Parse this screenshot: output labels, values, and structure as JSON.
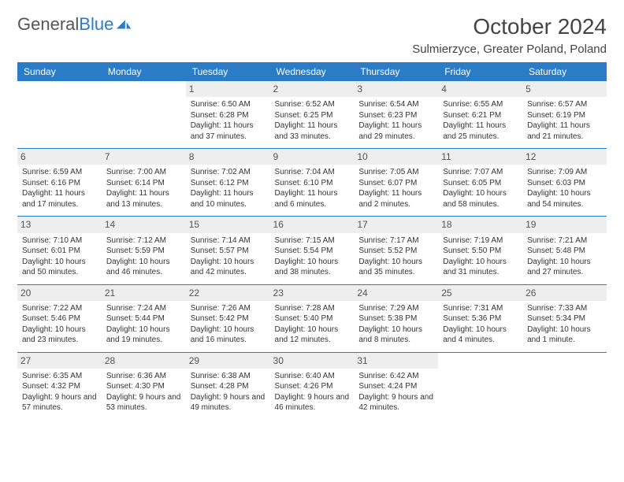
{
  "brand": {
    "part1": "General",
    "part2": "Blue"
  },
  "title": "October 2024",
  "location": "Sulmierzyce, Greater Poland, Poland",
  "colors": {
    "accent": "#2a7cc7",
    "header_bg": "#eeeeee",
    "text": "#333333",
    "background": "#ffffff"
  },
  "day_labels": [
    "Sunday",
    "Monday",
    "Tuesday",
    "Wednesday",
    "Thursday",
    "Friday",
    "Saturday"
  ],
  "weeks": [
    [
      {
        "n": "",
        "sr": "",
        "ss": "",
        "dl": ""
      },
      {
        "n": "",
        "sr": "",
        "ss": "",
        "dl": ""
      },
      {
        "n": "1",
        "sr": "Sunrise: 6:50 AM",
        "ss": "Sunset: 6:28 PM",
        "dl": "Daylight: 11 hours and 37 minutes."
      },
      {
        "n": "2",
        "sr": "Sunrise: 6:52 AM",
        "ss": "Sunset: 6:25 PM",
        "dl": "Daylight: 11 hours and 33 minutes."
      },
      {
        "n": "3",
        "sr": "Sunrise: 6:54 AM",
        "ss": "Sunset: 6:23 PM",
        "dl": "Daylight: 11 hours and 29 minutes."
      },
      {
        "n": "4",
        "sr": "Sunrise: 6:55 AM",
        "ss": "Sunset: 6:21 PM",
        "dl": "Daylight: 11 hours and 25 minutes."
      },
      {
        "n": "5",
        "sr": "Sunrise: 6:57 AM",
        "ss": "Sunset: 6:19 PM",
        "dl": "Daylight: 11 hours and 21 minutes."
      }
    ],
    [
      {
        "n": "6",
        "sr": "Sunrise: 6:59 AM",
        "ss": "Sunset: 6:16 PM",
        "dl": "Daylight: 11 hours and 17 minutes."
      },
      {
        "n": "7",
        "sr": "Sunrise: 7:00 AM",
        "ss": "Sunset: 6:14 PM",
        "dl": "Daylight: 11 hours and 13 minutes."
      },
      {
        "n": "8",
        "sr": "Sunrise: 7:02 AM",
        "ss": "Sunset: 6:12 PM",
        "dl": "Daylight: 11 hours and 10 minutes."
      },
      {
        "n": "9",
        "sr": "Sunrise: 7:04 AM",
        "ss": "Sunset: 6:10 PM",
        "dl": "Daylight: 11 hours and 6 minutes."
      },
      {
        "n": "10",
        "sr": "Sunrise: 7:05 AM",
        "ss": "Sunset: 6:07 PM",
        "dl": "Daylight: 11 hours and 2 minutes."
      },
      {
        "n": "11",
        "sr": "Sunrise: 7:07 AM",
        "ss": "Sunset: 6:05 PM",
        "dl": "Daylight: 10 hours and 58 minutes."
      },
      {
        "n": "12",
        "sr": "Sunrise: 7:09 AM",
        "ss": "Sunset: 6:03 PM",
        "dl": "Daylight: 10 hours and 54 minutes."
      }
    ],
    [
      {
        "n": "13",
        "sr": "Sunrise: 7:10 AM",
        "ss": "Sunset: 6:01 PM",
        "dl": "Daylight: 10 hours and 50 minutes."
      },
      {
        "n": "14",
        "sr": "Sunrise: 7:12 AM",
        "ss": "Sunset: 5:59 PM",
        "dl": "Daylight: 10 hours and 46 minutes."
      },
      {
        "n": "15",
        "sr": "Sunrise: 7:14 AM",
        "ss": "Sunset: 5:57 PM",
        "dl": "Daylight: 10 hours and 42 minutes."
      },
      {
        "n": "16",
        "sr": "Sunrise: 7:15 AM",
        "ss": "Sunset: 5:54 PM",
        "dl": "Daylight: 10 hours and 38 minutes."
      },
      {
        "n": "17",
        "sr": "Sunrise: 7:17 AM",
        "ss": "Sunset: 5:52 PM",
        "dl": "Daylight: 10 hours and 35 minutes."
      },
      {
        "n": "18",
        "sr": "Sunrise: 7:19 AM",
        "ss": "Sunset: 5:50 PM",
        "dl": "Daylight: 10 hours and 31 minutes."
      },
      {
        "n": "19",
        "sr": "Sunrise: 7:21 AM",
        "ss": "Sunset: 5:48 PM",
        "dl": "Daylight: 10 hours and 27 minutes."
      }
    ],
    [
      {
        "n": "20",
        "sr": "Sunrise: 7:22 AM",
        "ss": "Sunset: 5:46 PM",
        "dl": "Daylight: 10 hours and 23 minutes."
      },
      {
        "n": "21",
        "sr": "Sunrise: 7:24 AM",
        "ss": "Sunset: 5:44 PM",
        "dl": "Daylight: 10 hours and 19 minutes."
      },
      {
        "n": "22",
        "sr": "Sunrise: 7:26 AM",
        "ss": "Sunset: 5:42 PM",
        "dl": "Daylight: 10 hours and 16 minutes."
      },
      {
        "n": "23",
        "sr": "Sunrise: 7:28 AM",
        "ss": "Sunset: 5:40 PM",
        "dl": "Daylight: 10 hours and 12 minutes."
      },
      {
        "n": "24",
        "sr": "Sunrise: 7:29 AM",
        "ss": "Sunset: 5:38 PM",
        "dl": "Daylight: 10 hours and 8 minutes."
      },
      {
        "n": "25",
        "sr": "Sunrise: 7:31 AM",
        "ss": "Sunset: 5:36 PM",
        "dl": "Daylight: 10 hours and 4 minutes."
      },
      {
        "n": "26",
        "sr": "Sunrise: 7:33 AM",
        "ss": "Sunset: 5:34 PM",
        "dl": "Daylight: 10 hours and 1 minute."
      }
    ],
    [
      {
        "n": "27",
        "sr": "Sunrise: 6:35 AM",
        "ss": "Sunset: 4:32 PM",
        "dl": "Daylight: 9 hours and 57 minutes."
      },
      {
        "n": "28",
        "sr": "Sunrise: 6:36 AM",
        "ss": "Sunset: 4:30 PM",
        "dl": "Daylight: 9 hours and 53 minutes."
      },
      {
        "n": "29",
        "sr": "Sunrise: 6:38 AM",
        "ss": "Sunset: 4:28 PM",
        "dl": "Daylight: 9 hours and 49 minutes."
      },
      {
        "n": "30",
        "sr": "Sunrise: 6:40 AM",
        "ss": "Sunset: 4:26 PM",
        "dl": "Daylight: 9 hours and 46 minutes."
      },
      {
        "n": "31",
        "sr": "Sunrise: 6:42 AM",
        "ss": "Sunset: 4:24 PM",
        "dl": "Daylight: 9 hours and 42 minutes."
      },
      {
        "n": "",
        "sr": "",
        "ss": "",
        "dl": ""
      },
      {
        "n": "",
        "sr": "",
        "ss": "",
        "dl": ""
      }
    ]
  ]
}
